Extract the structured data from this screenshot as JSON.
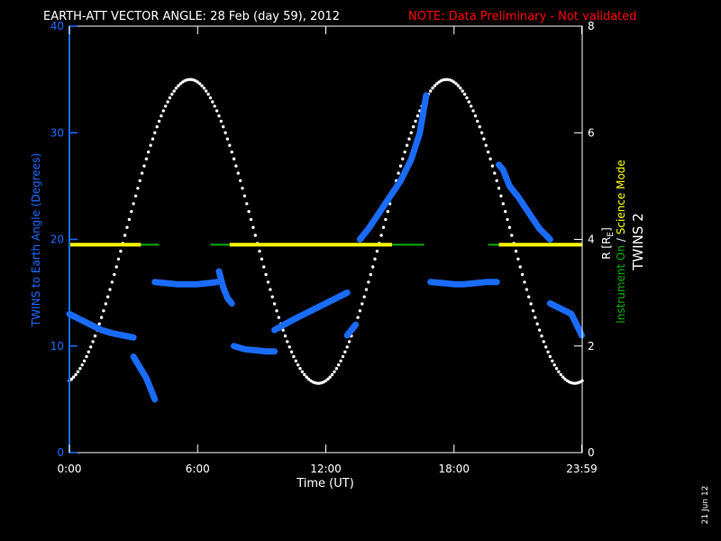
{
  "header": {
    "title": "EARTH-ATT VECTOR ANGLE: 28 Feb (day  59), 2012",
    "note": "NOTE: Data Preliminary - Not validated"
  },
  "footer": {
    "date_stamp": "21 Jun 12"
  },
  "colors": {
    "angle": "#1a6cff",
    "range": "#ffffff",
    "science": "#ffff00",
    "instrument_on": "#00b000",
    "note": "#ff0000"
  },
  "chart_data": {
    "type": "scatter",
    "xlabel": "Time (UT)",
    "ylabel_left": "TWINS to Earth Angle (Degrees)",
    "ylabel_right": "R [R",
    "ylabel_right_sub": "E",
    "ylabel_right_end": "]",
    "right_label_instrument": "Instrument On",
    "right_label_sep": " / ",
    "right_label_science": "Science Mode",
    "right_label_satellite": "TWINS 2",
    "xlim": [
      0,
      24
    ],
    "ylim_left": [
      0,
      40
    ],
    "ylim_right": [
      0,
      8
    ],
    "x_ticks": [
      {
        "value": 0,
        "label": "0:00"
      },
      {
        "value": 6,
        "label": "6:00"
      },
      {
        "value": 12,
        "label": "12:00"
      },
      {
        "value": 18,
        "label": "18:00"
      },
      {
        "value": 23.98,
        "label": "23:59"
      }
    ],
    "y_left_ticks": [
      0,
      10,
      20,
      30,
      40
    ],
    "y_right_ticks": [
      0,
      2,
      4,
      6,
      8
    ],
    "science_level_deg": 19.5,
    "mode_segments": [
      {
        "x0": 0.0,
        "x1": 3.35,
        "mode": "science"
      },
      {
        "x0": 3.35,
        "x1": 4.2,
        "mode": "instrument_on"
      },
      {
        "x0": 6.6,
        "x1": 7.5,
        "mode": "instrument_on"
      },
      {
        "x0": 7.5,
        "x1": 15.1,
        "mode": "science"
      },
      {
        "x0": 15.1,
        "x1": 16.6,
        "mode": "instrument_on"
      },
      {
        "x0": 19.6,
        "x1": 20.1,
        "mode": "instrument_on"
      },
      {
        "x0": 20.1,
        "x1": 24.0,
        "mode": "science"
      }
    ],
    "range_series": {
      "name": "R",
      "apogee_re": 7.0,
      "perigee_re": 1.3,
      "perigee_times": [
        5.65,
        17.65
      ],
      "apogee_times": [
        0.0,
        11.7,
        23.5
      ]
    },
    "angle_series": [
      {
        "x": [
          0.0,
          0.5,
          1.0,
          1.5,
          2.0,
          2.5,
          3.0
        ],
        "y": [
          13.0,
          12.5,
          12.0,
          11.5,
          11.2,
          11.0,
          10.8
        ]
      },
      {
        "x": [
          3.0,
          3.3,
          3.6,
          3.8,
          4.0
        ],
        "y": [
          9.0,
          8.0,
          7.0,
          6.0,
          5.0
        ]
      },
      {
        "x": [
          4.0,
          4.5,
          5.0,
          5.5,
          6.0,
          6.5,
          6.9
        ],
        "y": [
          16.0,
          15.9,
          15.8,
          15.8,
          15.8,
          15.9,
          16.0
        ]
      },
      {
        "x": [
          7.0,
          7.2,
          7.4,
          7.6
        ],
        "y": [
          17.0,
          15.5,
          14.5,
          14.0
        ]
      },
      {
        "x": [
          7.7,
          8.2,
          8.7,
          9.2,
          9.6
        ],
        "y": [
          10.0,
          9.7,
          9.6,
          9.5,
          9.5
        ]
      },
      {
        "x": [
          9.6,
          10.5,
          11.5,
          12.5,
          13.0
        ],
        "y": [
          11.5,
          12.5,
          13.5,
          14.5,
          15.0
        ]
      },
      {
        "x": [
          13.0,
          13.4
        ],
        "y": [
          11.0,
          12.0
        ]
      },
      {
        "x": [
          13.6,
          14.0,
          14.5,
          15.0,
          15.5,
          16.0,
          16.4,
          16.7
        ],
        "y": [
          20.0,
          21.0,
          22.5,
          24.0,
          25.5,
          27.5,
          30.0,
          33.5
        ]
      },
      {
        "x": [
          16.9,
          17.5,
          18.0,
          18.5,
          19.0,
          19.5,
          20.0
        ],
        "y": [
          16.0,
          15.9,
          15.8,
          15.8,
          15.9,
          16.0,
          16.0
        ]
      },
      {
        "x": [
          20.1,
          20.3,
          20.6,
          21.0,
          21.5,
          22.0,
          22.5
        ],
        "y": [
          27.0,
          26.5,
          25.0,
          24.0,
          22.5,
          21.0,
          20.0
        ]
      },
      {
        "x": [
          22.5,
          23.0,
          23.5,
          23.98
        ],
        "y": [
          14.0,
          13.5,
          13.0,
          11.0
        ]
      }
    ]
  }
}
